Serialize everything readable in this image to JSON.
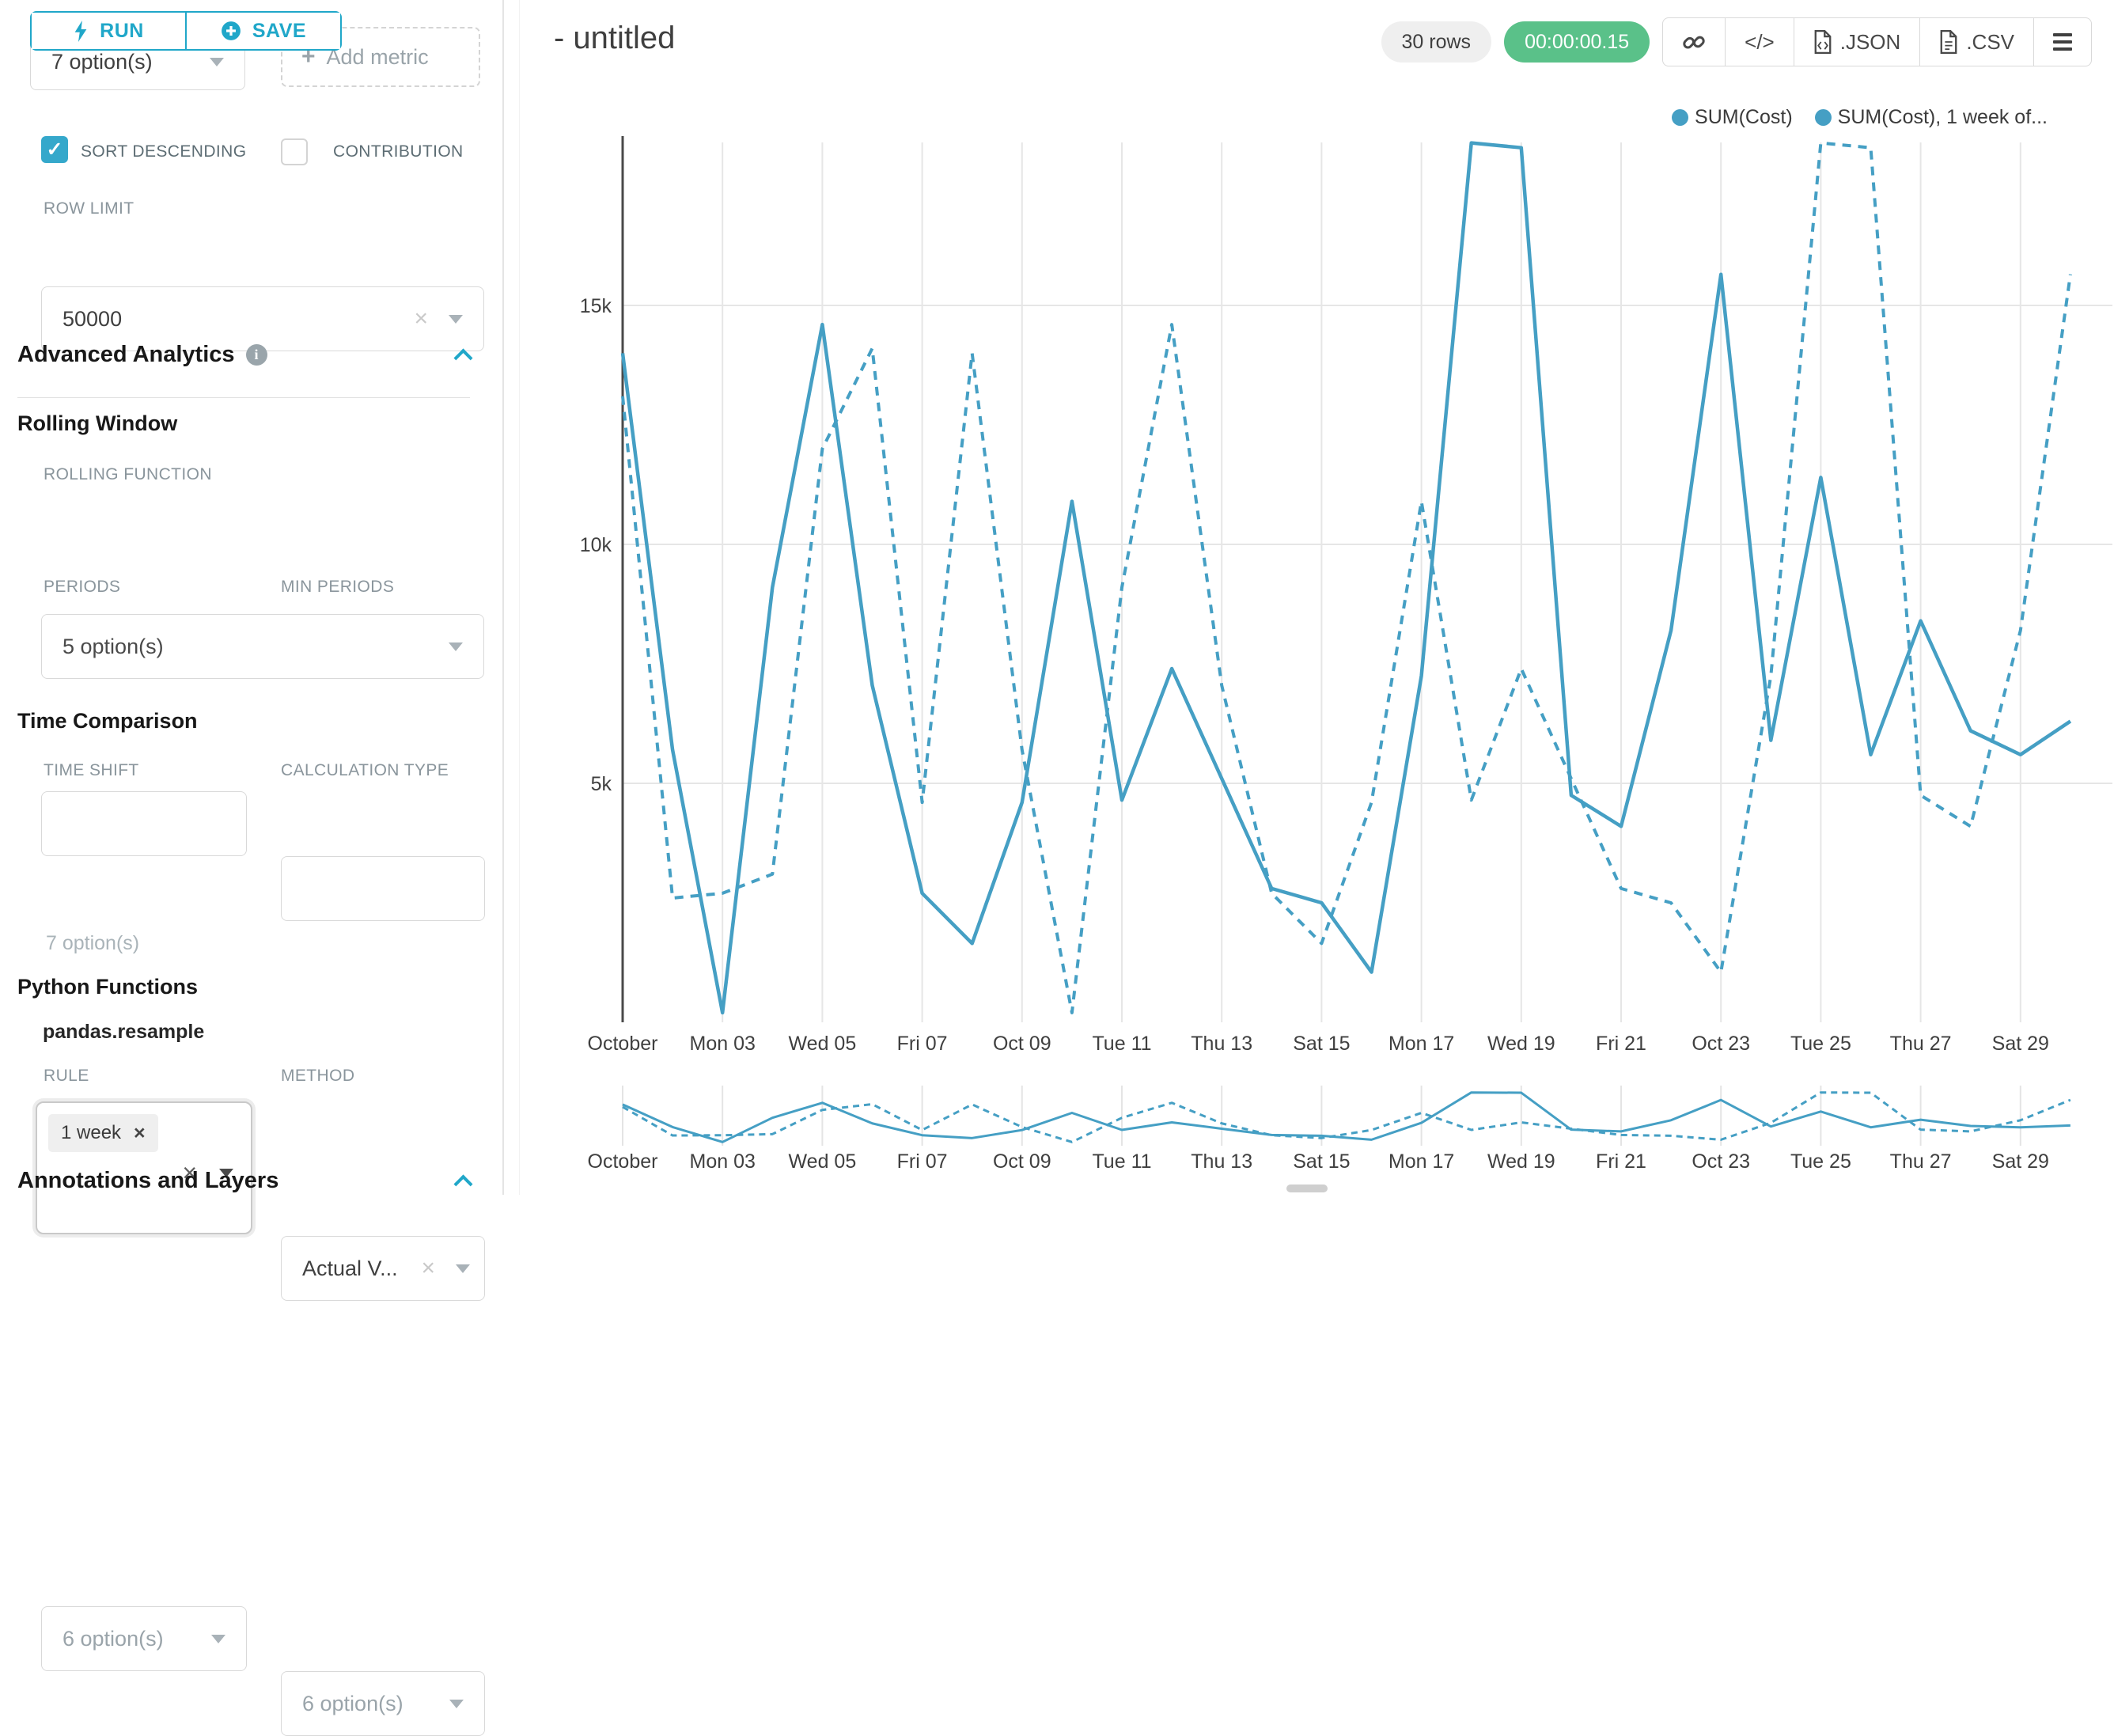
{
  "colors": {
    "accent": "#20a7c9",
    "success": "#5ac189",
    "line": "#459fc4"
  },
  "sidebar": {
    "run_label": "RUN",
    "save_label": "SAVE",
    "metrics_select_value": "7 option(s)",
    "add_metric_label": "Add metric",
    "sort_descending_label": "SORT DESCENDING",
    "contribution_label": "CONTRIBUTION",
    "row_limit_label": "ROW LIMIT",
    "row_limit_value": "50000",
    "advanced_analytics_title": "Advanced Analytics",
    "rolling_window_title": "Rolling Window",
    "rolling_function_label": "ROLLING FUNCTION",
    "rolling_function_value": "5 option(s)",
    "periods_label": "PERIODS",
    "min_periods_label": "MIN PERIODS",
    "time_comparison_title": "Time Comparison",
    "time_shift_label": "TIME SHIFT",
    "time_shift_tag": "1 week",
    "time_shift_hint": "7 option(s)",
    "calculation_type_label": "CALCULATION TYPE",
    "calculation_type_value": "Actual V...",
    "python_functions_title": "Python Functions",
    "pandas_resample_label": "pandas.resample",
    "rule_label": "RULE",
    "rule_value": "6 option(s)",
    "method_label": "METHOD",
    "method_value": "6 option(s)",
    "annotations_title": "Annotations and Layers"
  },
  "header": {
    "title": "- untitled",
    "rows_badge": "30 rows",
    "timer": "00:00:00.15",
    "code_label": "</>",
    "json_label": ".JSON",
    "csv_label": ".CSV"
  },
  "chart_data": {
    "type": "line",
    "title": "- untitled",
    "x_days": 30,
    "x_tick_labels": [
      "October",
      "Mon 03",
      "Wed 05",
      "Fri 07",
      "Oct 09",
      "Tue 11",
      "Thu 13",
      "Sat 15",
      "Mon 17",
      "Wed 19",
      "Fri 21",
      "Oct 23",
      "Tue 25",
      "Thu 27",
      "Sat 29"
    ],
    "y_ticks": [
      {
        "value": 5000,
        "label": "5k"
      },
      {
        "value": 10000,
        "label": "10k"
      },
      {
        "value": 15000,
        "label": "15k"
      }
    ],
    "ylim": [
      0,
      18600
    ],
    "grid": true,
    "legend_position": "top-right",
    "series_color": "#459fc4",
    "legend": [
      "SUM(Cost)",
      "SUM(Cost), 1 week of..."
    ],
    "series": [
      {
        "name": "SUM(Cost)",
        "line_style": "solid",
        "values": [
          14000,
          5700,
          200,
          9100,
          14600,
          7050,
          2700,
          1650,
          4600,
          10900,
          4650,
          7400,
          5100,
          2800,
          2500,
          1050,
          7250,
          18400,
          18300,
          4750,
          4100,
          8200,
          15650,
          5900,
          11400,
          5600,
          8400,
          6100,
          5600,
          6300
        ]
      },
      {
        "name": "SUM(Cost), 1 week of...",
        "line_style": "dashed",
        "values": [
          13100,
          2600,
          2700,
          3100,
          12000,
          14100,
          4600,
          14000,
          5700,
          200,
          9100,
          14600,
          7050,
          2700,
          1650,
          4600,
          10900,
          4650,
          7400,
          5100,
          2800,
          2500,
          1050,
          7250,
          18400,
          18300,
          4750,
          4100,
          8200,
          15650
        ]
      }
    ]
  }
}
